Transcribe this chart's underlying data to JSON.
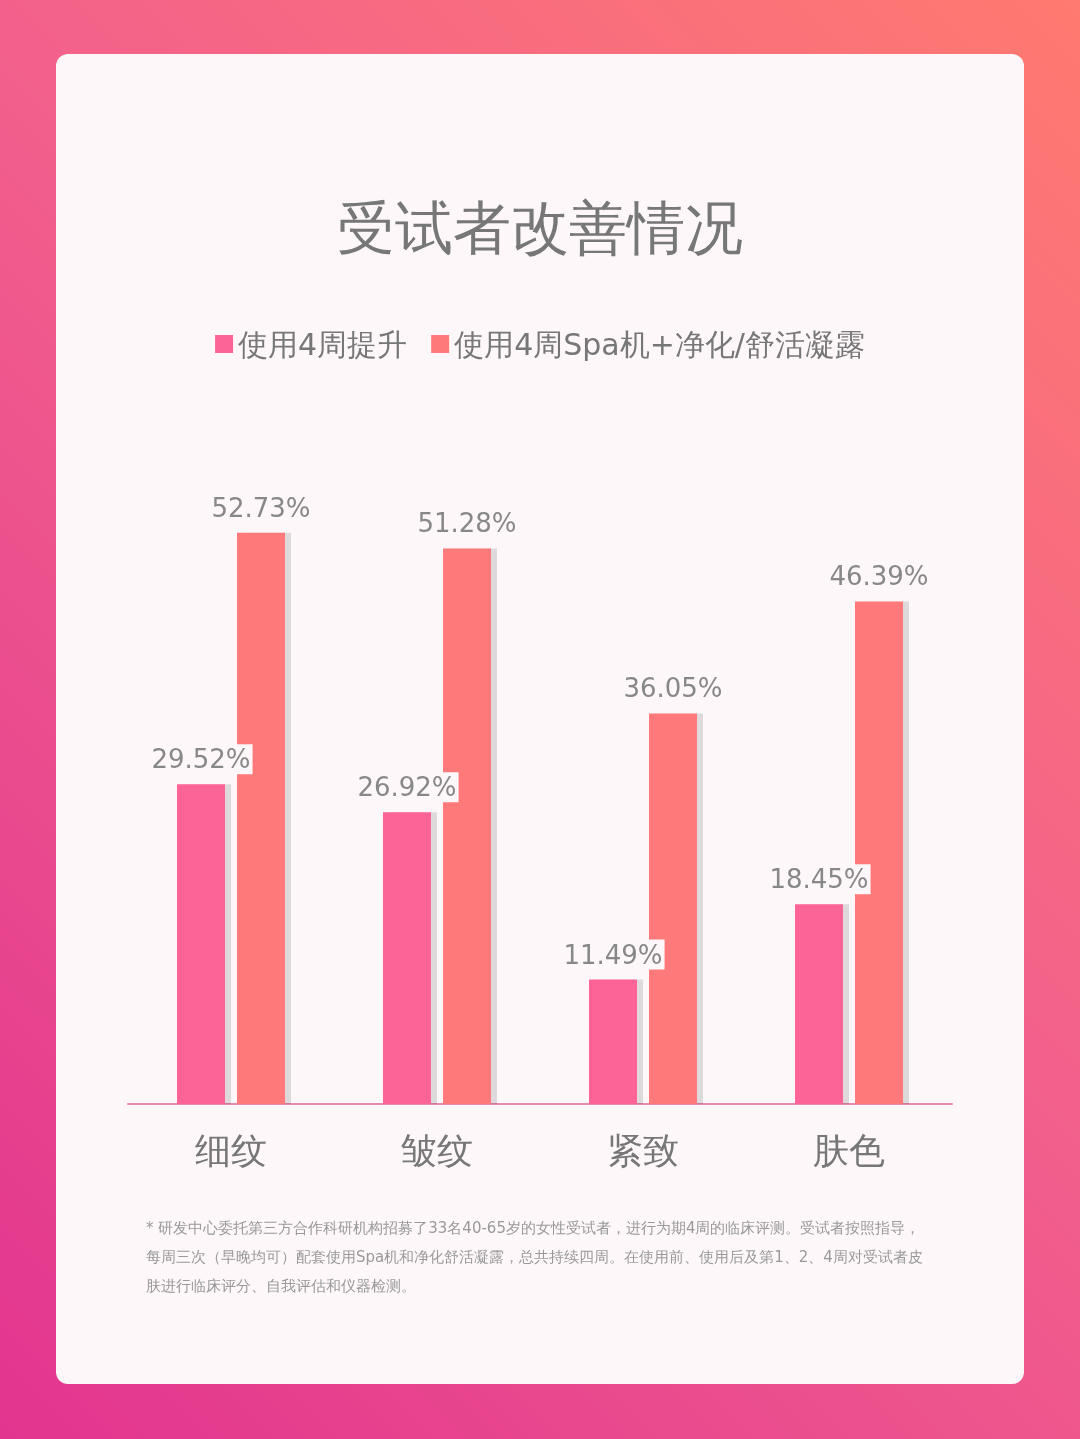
{
  "chart_data": {
    "type": "bar",
    "title": "受试者改善情况",
    "categories": [
      "细纹",
      "皱纹",
      "紧致",
      "肤色"
    ],
    "series": [
      {
        "name": "使用4周提升",
        "color": "#fc6497",
        "values": [
          29.52,
          26.92,
          11.49,
          18.45
        ],
        "value_labels": [
          "29.52%",
          "26.92%",
          "11.49%",
          "18.45%"
        ]
      },
      {
        "name": "使用4周Spa机+净化/舒活凝露",
        "color": "#fe7a7a",
        "values": [
          52.73,
          51.28,
          36.05,
          46.39
        ],
        "value_labels": [
          "52.73%",
          "51.28%",
          "36.05%",
          "46.39%"
        ]
      }
    ],
    "legend": "top",
    "annotations": [
      "* 研发中心委托第三方合作科研机构招募了33名40-65岁的女性受试者，进行为期4周的临床评测。受试者按照指导，每周三次（早晚均可）配套使用Spa机和净化舒活凝露，总共持续四周。在使用前、使用后及第1、2、4周对受试者皮肤进行临床评分、自我评估和仪器检测。"
    ]
  }
}
